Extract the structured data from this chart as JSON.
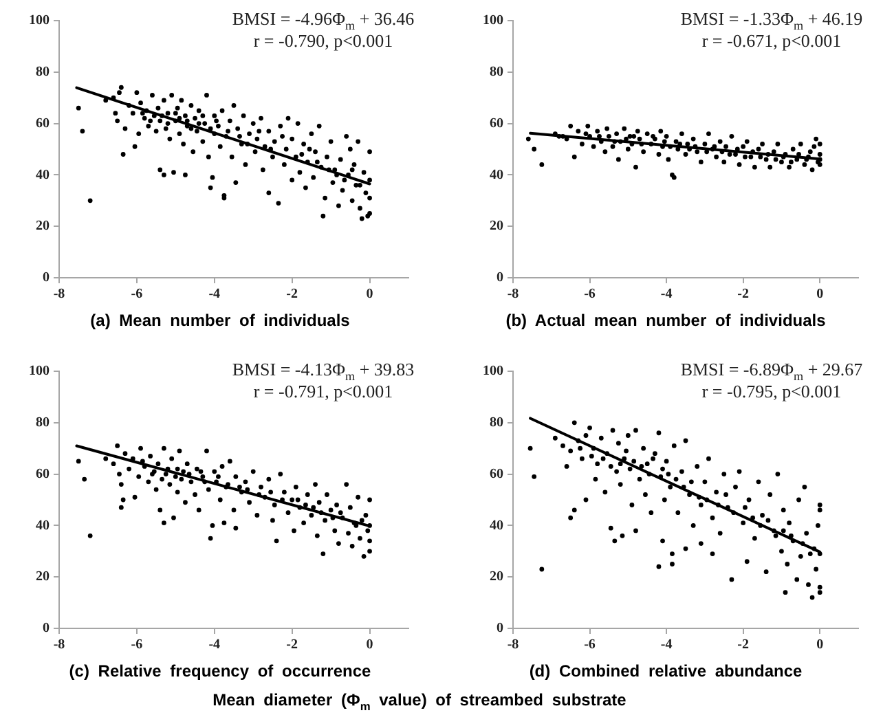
{
  "chart_data": [
    {
      "type": "scatter",
      "title": "(a) Mean number of individuals",
      "xlim": [
        -8,
        1
      ],
      "xticks": [
        -8,
        -6,
        -4,
        -2,
        0
      ],
      "ylim": [
        0,
        100
      ],
      "yticks": [
        0,
        20,
        40,
        60,
        80,
        100
      ],
      "grid": false,
      "legend": false,
      "marker": "circle",
      "annotations": [
        "BMSI = -4.96Φ$_{m}$ + 36.46",
        "r = -0.790, p<0.001"
      ],
      "series": [
        {
          "color": "#000000",
          "x": [
            -7.5,
            -7.4,
            -7.2,
            -6.8,
            -6.6,
            -6.55,
            -6.5,
            -6.45,
            -6.4,
            -6.35,
            -6.3,
            -6.2,
            -6.1,
            -6.05,
            -6.0,
            -5.95,
            -5.9,
            -5.8,
            -5.75,
            -5.7,
            -5.6,
            -5.55,
            -5.5,
            -5.45,
            -5.4,
            -5.4,
            -5.3,
            -5.3,
            -5.25,
            -5.2,
            -5.15,
            -5.1,
            -5.05,
            -5.0,
            -4.95,
            -4.9,
            -4.85,
            -4.8,
            -4.75,
            -4.75,
            -4.7,
            -4.6,
            -4.55,
            -4.5,
            -4.45,
            -4.4,
            -4.3,
            -4.25,
            -4.2,
            -4.15,
            -4.1,
            -4.05,
            -4.0,
            -4.0,
            -3.9,
            -3.85,
            -3.8,
            -3.75,
            -3.75,
            -3.7,
            -3.6,
            -3.55,
            -3.5,
            -3.45,
            -3.4,
            -3.3,
            -3.25,
            -3.2,
            -3.1,
            -3.0,
            -2.95,
            -2.9,
            -2.8,
            -2.75,
            -2.7,
            -2.6,
            -2.6,
            -2.5,
            -2.45,
            -2.35,
            -2.3,
            -2.2,
            -2.15,
            -2.1,
            -2.0,
            -2.0,
            -1.9,
            -1.85,
            -1.8,
            -1.7,
            -1.65,
            -1.6,
            -1.5,
            -1.45,
            -1.4,
            -1.3,
            -1.25,
            -1.2,
            -1.15,
            -1.1,
            -1.0,
            -0.95,
            -0.9,
            -0.8,
            -0.75,
            -0.7,
            -0.6,
            -0.55,
            -0.5,
            -0.45,
            -0.4,
            -0.35,
            -0.3,
            -0.25,
            -0.2,
            -0.15,
            -0.1,
            -0.05,
            0,
            0,
            0,
            0,
            -5.85,
            -5.65,
            -5.35,
            -5.2,
            -5.0,
            -4.9,
            -4.7,
            -4.6,
            -4.4,
            -4.3,
            -4.1,
            -3.95,
            -3.65,
            -3.35,
            -3.15,
            -2.85,
            -2.55,
            -2.25,
            -1.75,
            -1.55,
            -1.35,
            -1.05,
            -0.85,
            -0.65,
            -0.45,
            -0.25
          ],
          "values": [
            66,
            57,
            30,
            69,
            70,
            64,
            61,
            72,
            74,
            48,
            58,
            67,
            64,
            51,
            72,
            56,
            68,
            62,
            65,
            59,
            71,
            63,
            57,
            66,
            61,
            42,
            69,
            40,
            58,
            64,
            54,
            71,
            41,
            61,
            66,
            56,
            69,
            52,
            63,
            40,
            59,
            67,
            49,
            62,
            57,
            65,
            53,
            60,
            71,
            47,
            35,
            39,
            63,
            56,
            59,
            51,
            65,
            32,
            31,
            55,
            61,
            47,
            67,
            37,
            58,
            52,
            63,
            44,
            56,
            60,
            49,
            54,
            62,
            42,
            51,
            57,
            33,
            47,
            53,
            29,
            59,
            44,
            50,
            62,
            54,
            38,
            47,
            60,
            41,
            52,
            35,
            45,
            56,
            39,
            49,
            59,
            43,
            24,
            31,
            47,
            53,
            37,
            42,
            28,
            46,
            34,
            55,
            40,
            50,
            30,
            44,
            36,
            53,
            27,
            23,
            41,
            33,
            24,
            49,
            38,
            31,
            25,
            64,
            61,
            63,
            60,
            64,
            62,
            61,
            58,
            60,
            63,
            58,
            61,
            57,
            55,
            52,
            57,
            50,
            55,
            48,
            50,
            45,
            42,
            40,
            38,
            42,
            36
          ]
        },
        {
          "type": "line",
          "color": "#000000",
          "marker": "none",
          "x": [
            -7.55,
            0
          ],
          "values": [
            73.9,
            36.5
          ]
        }
      ]
    },
    {
      "type": "scatter",
      "title": "(b) Actual mean number of individuals",
      "xlim": [
        -8,
        1
      ],
      "xticks": [
        -8,
        -6,
        -4,
        -2,
        0
      ],
      "ylim": [
        0,
        100
      ],
      "yticks": [
        0,
        20,
        40,
        60,
        80,
        100
      ],
      "grid": false,
      "legend": false,
      "marker": "circle",
      "annotations": [
        "BMSI = -1.33Φ$_{m}$ + 46.19",
        "r = -0.671, p<0.001"
      ],
      "series": [
        {
          "color": "#000000",
          "x": [
            -7.6,
            -7.45,
            -7.25,
            -6.9,
            -6.7,
            -6.6,
            -6.5,
            -6.4,
            -6.3,
            -6.2,
            -6.05,
            -6.0,
            -5.9,
            -5.8,
            -5.7,
            -5.6,
            -5.55,
            -5.5,
            -5.4,
            -5.3,
            -5.25,
            -5.2,
            -5.1,
            -5.0,
            -4.95,
            -4.9,
            -4.8,
            -4.75,
            -4.7,
            -4.6,
            -4.5,
            -4.4,
            -4.3,
            -4.2,
            -4.15,
            -4.1,
            -4.0,
            -3.95,
            -3.85,
            -3.8,
            -3.75,
            -3.7,
            -3.6,
            -3.5,
            -3.45,
            -3.3,
            -3.2,
            -3.1,
            -3.0,
            -2.9,
            -2.8,
            -2.7,
            -2.6,
            -2.5,
            -2.45,
            -2.3,
            -2.2,
            -2.1,
            -2.0,
            -1.9,
            -1.8,
            -1.7,
            -1.6,
            -1.5,
            -1.4,
            -1.3,
            -1.2,
            -1.1,
            -1.0,
            -0.9,
            -0.8,
            -0.7,
            -0.6,
            -0.5,
            -0.4,
            -0.3,
            -0.2,
            -0.15,
            -0.1,
            -0.05,
            0,
            0,
            0,
            0,
            -6.8,
            -6.1,
            -5.75,
            -5.35,
            -5.05,
            -4.85,
            -4.65,
            -4.35,
            -4.05,
            -3.9,
            -3.65,
            -3.4,
            -3.25,
            -2.95,
            -2.75,
            -2.55,
            -2.35,
            -2.15,
            -1.95,
            -1.75,
            -1.55,
            -1.35,
            -1.15,
            -0.95,
            -0.75,
            -0.55,
            -0.35,
            -0.25
          ],
          "values": [
            54,
            50,
            44,
            56,
            55,
            54,
            59,
            47,
            57,
            52,
            59,
            55,
            51,
            57,
            53,
            49,
            58,
            55,
            51,
            56,
            46,
            53,
            58,
            50,
            55,
            52,
            43,
            57,
            54,
            49,
            56,
            52,
            54,
            48,
            57,
            51,
            55,
            46,
            40,
            39,
            53,
            50,
            56,
            48,
            52,
            54,
            49,
            45,
            52,
            56,
            50,
            47,
            53,
            45,
            51,
            55,
            48,
            44,
            51,
            53,
            47,
            43,
            50,
            52,
            46,
            43,
            49,
            52,
            45,
            48,
            43,
            50,
            46,
            52,
            44,
            47,
            42,
            51,
            54,
            45,
            52,
            48,
            44,
            46,
            55,
            56,
            55,
            53,
            54,
            55,
            52,
            55,
            53,
            51,
            52,
            50,
            51,
            49,
            51,
            49,
            48,
            50,
            47,
            49,
            47,
            48,
            46,
            47,
            45,
            48,
            46,
            49
          ]
        },
        {
          "type": "line",
          "color": "#000000",
          "marker": "none",
          "x": [
            -7.55,
            0
          ],
          "values": [
            56.2,
            46.2
          ]
        }
      ]
    },
    {
      "type": "scatter",
      "title": "(c) Relative frequency of occurrence",
      "xlim": [
        -8,
        1
      ],
      "xticks": [
        -8,
        -6,
        -4,
        -2,
        0
      ],
      "ylim": [
        0,
        100
      ],
      "yticks": [
        0,
        20,
        40,
        60,
        80,
        100
      ],
      "grid": false,
      "legend": false,
      "marker": "circle",
      "annotations": [
        "BMSI = -4.13Φ$_{m}$ + 39.83",
        "r = -0.791, p<0.001"
      ],
      "series": [
        {
          "color": "#000000",
          "x": [
            -7.5,
            -7.35,
            -7.2,
            -6.8,
            -6.6,
            -6.5,
            -6.45,
            -6.4,
            -6.35,
            -6.4,
            -6.3,
            -6.2,
            -6.1,
            -6.05,
            -5.95,
            -5.9,
            -5.8,
            -5.7,
            -5.65,
            -5.6,
            -5.5,
            -5.45,
            -5.4,
            -5.35,
            -5.3,
            -5.3,
            -5.2,
            -5.15,
            -5.1,
            -5.05,
            -5.0,
            -4.95,
            -4.9,
            -4.8,
            -4.75,
            -4.7,
            -4.6,
            -4.5,
            -4.45,
            -4.4,
            -4.3,
            -4.2,
            -4.15,
            -4.1,
            -4.05,
            -4.0,
            -3.95,
            -3.85,
            -3.8,
            -3.75,
            -3.7,
            -3.6,
            -3.5,
            -3.45,
            -3.45,
            -3.3,
            -3.2,
            -3.1,
            -3.0,
            -2.9,
            -2.8,
            -2.7,
            -2.6,
            -2.5,
            -2.45,
            -2.4,
            -2.3,
            -2.2,
            -2.1,
            -2.0,
            -1.95,
            -1.9,
            -1.8,
            -1.7,
            -1.6,
            -1.5,
            -1.4,
            -1.35,
            -1.3,
            -1.2,
            -1.15,
            -1.1,
            -1.0,
            -0.9,
            -0.85,
            -0.8,
            -0.7,
            -0.6,
            -0.55,
            -0.5,
            -0.45,
            -0.4,
            -0.3,
            -0.25,
            -0.15,
            -0.1,
            -0.05,
            0,
            0,
            0,
            0,
            -5.85,
            -5.55,
            -5.25,
            -4.95,
            -4.85,
            -4.65,
            -4.35,
            -4.25,
            -3.9,
            -3.65,
            -3.35,
            -3.15,
            -2.85,
            -2.55,
            -2.25,
            -1.85,
            -1.65,
            -1.45,
            -1.25,
            -0.95,
            -0.75,
            -0.35,
            -0.2
          ],
          "values": [
            65,
            58,
            36,
            66,
            64,
            71,
            60,
            56,
            50,
            47,
            68,
            62,
            66,
            51,
            59,
            70,
            63,
            57,
            67,
            60,
            54,
            64,
            46,
            58,
            70,
            41,
            62,
            56,
            66,
            43,
            59,
            53,
            69,
            61,
            49,
            64,
            57,
            52,
            62,
            46,
            59,
            69,
            54,
            35,
            40,
            61,
            57,
            50,
            63,
            41,
            55,
            65,
            46,
            59,
            39,
            53,
            57,
            49,
            61,
            44,
            55,
            51,
            58,
            42,
            48,
            34,
            60,
            53,
            45,
            50,
            38,
            55,
            47,
            41,
            52,
            44,
            56,
            36,
            49,
            29,
            42,
            52,
            46,
            38,
            48,
            33,
            43,
            56,
            37,
            47,
            32,
            41,
            51,
            35,
            28,
            44,
            38,
            50,
            40,
            34,
            30,
            65,
            61,
            60,
            62,
            58,
            60,
            61,
            57,
            59,
            56,
            55,
            54,
            52,
            53,
            50,
            50,
            48,
            47,
            45,
            43,
            45,
            40,
            42
          ]
        },
        {
          "type": "line",
          "color": "#000000",
          "marker": "none",
          "x": [
            -7.55,
            0
          ],
          "values": [
            71.0,
            39.8
          ]
        }
      ]
    },
    {
      "type": "scatter",
      "title": "(d) Combined relative abundance",
      "xlabel": "Mean diameter (Φ$_{m}$ value) of streambed substrate",
      "xlim": [
        -8,
        1
      ],
      "xticks": [
        -8,
        -6,
        -4,
        -2,
        0
      ],
      "ylim": [
        0,
        100
      ],
      "yticks": [
        0,
        20,
        40,
        60,
        80,
        100
      ],
      "grid": false,
      "legend": false,
      "marker": "circle",
      "annotations": [
        "BMSI = -6.89Φ$_{m}$ + 29.67",
        "r = -0.795, p<0.001"
      ],
      "series": [
        {
          "color": "#000000",
          "x": [
            -7.55,
            -7.45,
            -7.25,
            -6.9,
            -6.7,
            -6.6,
            -6.5,
            -6.5,
            -6.4,
            -6.4,
            -6.3,
            -6.2,
            -6.1,
            -6.1,
            -6.0,
            -5.9,
            -5.85,
            -5.8,
            -5.7,
            -5.6,
            -5.55,
            -5.45,
            -5.4,
            -5.35,
            -5.3,
            -5.25,
            -5.2,
            -5.15,
            -5.1,
            -5.0,
            -4.95,
            -4.9,
            -4.8,
            -4.8,
            -4.7,
            -4.6,
            -4.55,
            -4.5,
            -4.4,
            -4.3,
            -4.2,
            -4.2,
            -4.15,
            -4.1,
            -4.05,
            -4.0,
            -3.9,
            -3.85,
            -3.85,
            -3.8,
            -3.7,
            -3.6,
            -3.5,
            -3.5,
            -3.4,
            -3.3,
            -3.2,
            -3.1,
            -3.1,
            -3.0,
            -2.9,
            -2.8,
            -2.8,
            -2.7,
            -2.6,
            -2.5,
            -2.4,
            -2.3,
            -2.2,
            -2.1,
            -2.0,
            -1.9,
            -1.85,
            -1.7,
            -1.6,
            -1.5,
            -1.4,
            -1.3,
            -1.2,
            -1.1,
            -1.0,
            -0.95,
            -0.9,
            -0.85,
            -0.8,
            -0.7,
            -0.6,
            -0.55,
            -0.5,
            -0.4,
            -0.35,
            -0.3,
            -0.2,
            -0.15,
            -0.1,
            -0.05,
            0,
            0,
            0,
            0,
            0,
            -6.25,
            -5.95,
            -5.65,
            -5.45,
            -5.2,
            -5.05,
            -4.85,
            -4.65,
            -4.45,
            -4.35,
            -4.1,
            -3.95,
            -3.75,
            -3.55,
            -3.35,
            -3.15,
            -2.95,
            -2.65,
            -2.45,
            -2.25,
            -1.95,
            -1.75,
            -1.55,
            -1.35,
            -1.15,
            -0.95,
            -0.75,
            -0.45,
            -0.25
          ],
          "values": [
            70,
            59,
            23,
            74,
            71,
            63,
            69,
            43,
            46,
            80,
            73,
            66,
            75,
            50,
            78,
            70,
            58,
            64,
            74,
            53,
            68,
            39,
            77,
            34,
            61,
            72,
            56,
            36,
            66,
            75,
            62,
            48,
            77,
            38,
            58,
            70,
            52,
            64,
            45,
            68,
            76,
            24,
            59,
            34,
            50,
            65,
            55,
            25,
            29,
            71,
            45,
            61,
            73,
            31,
            52,
            40,
            63,
            48,
            33,
            57,
            66,
            43,
            29,
            53,
            37,
            60,
            47,
            19,
            55,
            61,
            41,
            26,
            50,
            35,
            57,
            44,
            22,
            52,
            38,
            60,
            30,
            46,
            14,
            25,
            41,
            34,
            19,
            50,
            28,
            55,
            37,
            17,
            12,
            31,
            23,
            40,
            48,
            46,
            29,
            16,
            14,
            70,
            67,
            66,
            63,
            64,
            69,
            65,
            63,
            60,
            66,
            62,
            60,
            58,
            55,
            57,
            51,
            50,
            48,
            52,
            45,
            47,
            43,
            40,
            42,
            36,
            38,
            36,
            33,
            29
          ]
        },
        {
          "type": "line",
          "color": "#000000",
          "marker": "none",
          "x": [
            -7.55,
            0
          ],
          "values": [
            81.7,
            29.7
          ]
        }
      ]
    }
  ]
}
